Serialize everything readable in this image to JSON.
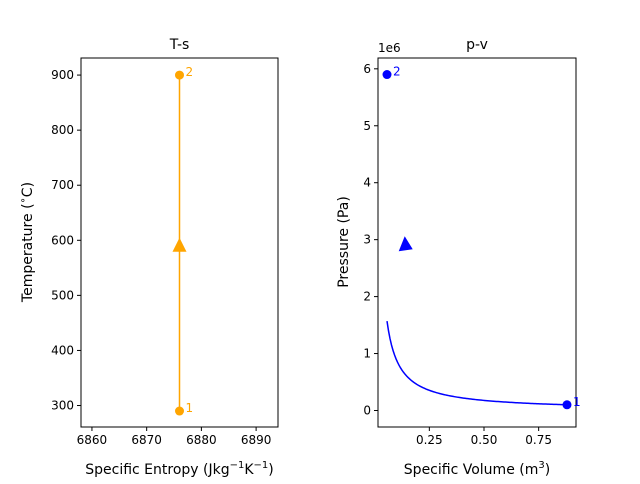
{
  "chart_data": [
    {
      "type": "line",
      "title": "T-s",
      "xlabel_main": "Specific Entropy (Jkg",
      "xlabel_sup1": "−1",
      "xlabel_mid": "K",
      "xlabel_sup2": "−1",
      "xlabel_end": ")",
      "ylabel_main": "Temperature (",
      "ylabel_sup": "∘",
      "ylabel_end": "C)",
      "xlim": [
        6858,
        6894
      ],
      "ylim": [
        261,
        931
      ],
      "xticks": [
        6860,
        6870,
        6880,
        6890
      ],
      "yticks": [
        300,
        400,
        500,
        600,
        700,
        800,
        900
      ],
      "color": "#FFA500",
      "points": [
        {
          "label": "1",
          "x": 6876,
          "y": 290
        },
        {
          "label": "2",
          "x": 6876,
          "y": 900
        }
      ],
      "arrow": {
        "x": 6876,
        "y": 590,
        "direction": "up"
      }
    },
    {
      "type": "line",
      "title": "p-v",
      "scale_label": "1e6",
      "xlabel_main": "Specific Volume (m",
      "xlabel_sup": "3",
      "xlabel_end": ")",
      "ylabel": "Pressure (Pa)",
      "xlim": [
        0.0152,
        0.9208
      ],
      "ylim": [
        -0.29,
        6.19
      ],
      "xticks": [
        "0.25",
        "0.50",
        "0.75"
      ],
      "xtick_values": [
        0.25,
        0.5,
        0.75
      ],
      "yticks": [
        "0",
        "1",
        "2",
        "3",
        "4",
        "5",
        "6"
      ],
      "ytick_values": [
        0,
        1,
        2,
        3,
        4,
        5,
        6
      ],
      "color": "#0000FF",
      "curve": {
        "pv_constant": 0.0885
      },
      "points": [
        {
          "label": "1",
          "x": 0.8796,
          "y": 0.1006
        },
        {
          "label": "2",
          "x": 0.0564,
          "y": 5.9
        }
      ],
      "arrow": {
        "x": 0.142,
        "y": 2.92,
        "direction": "up-left"
      }
    }
  ]
}
